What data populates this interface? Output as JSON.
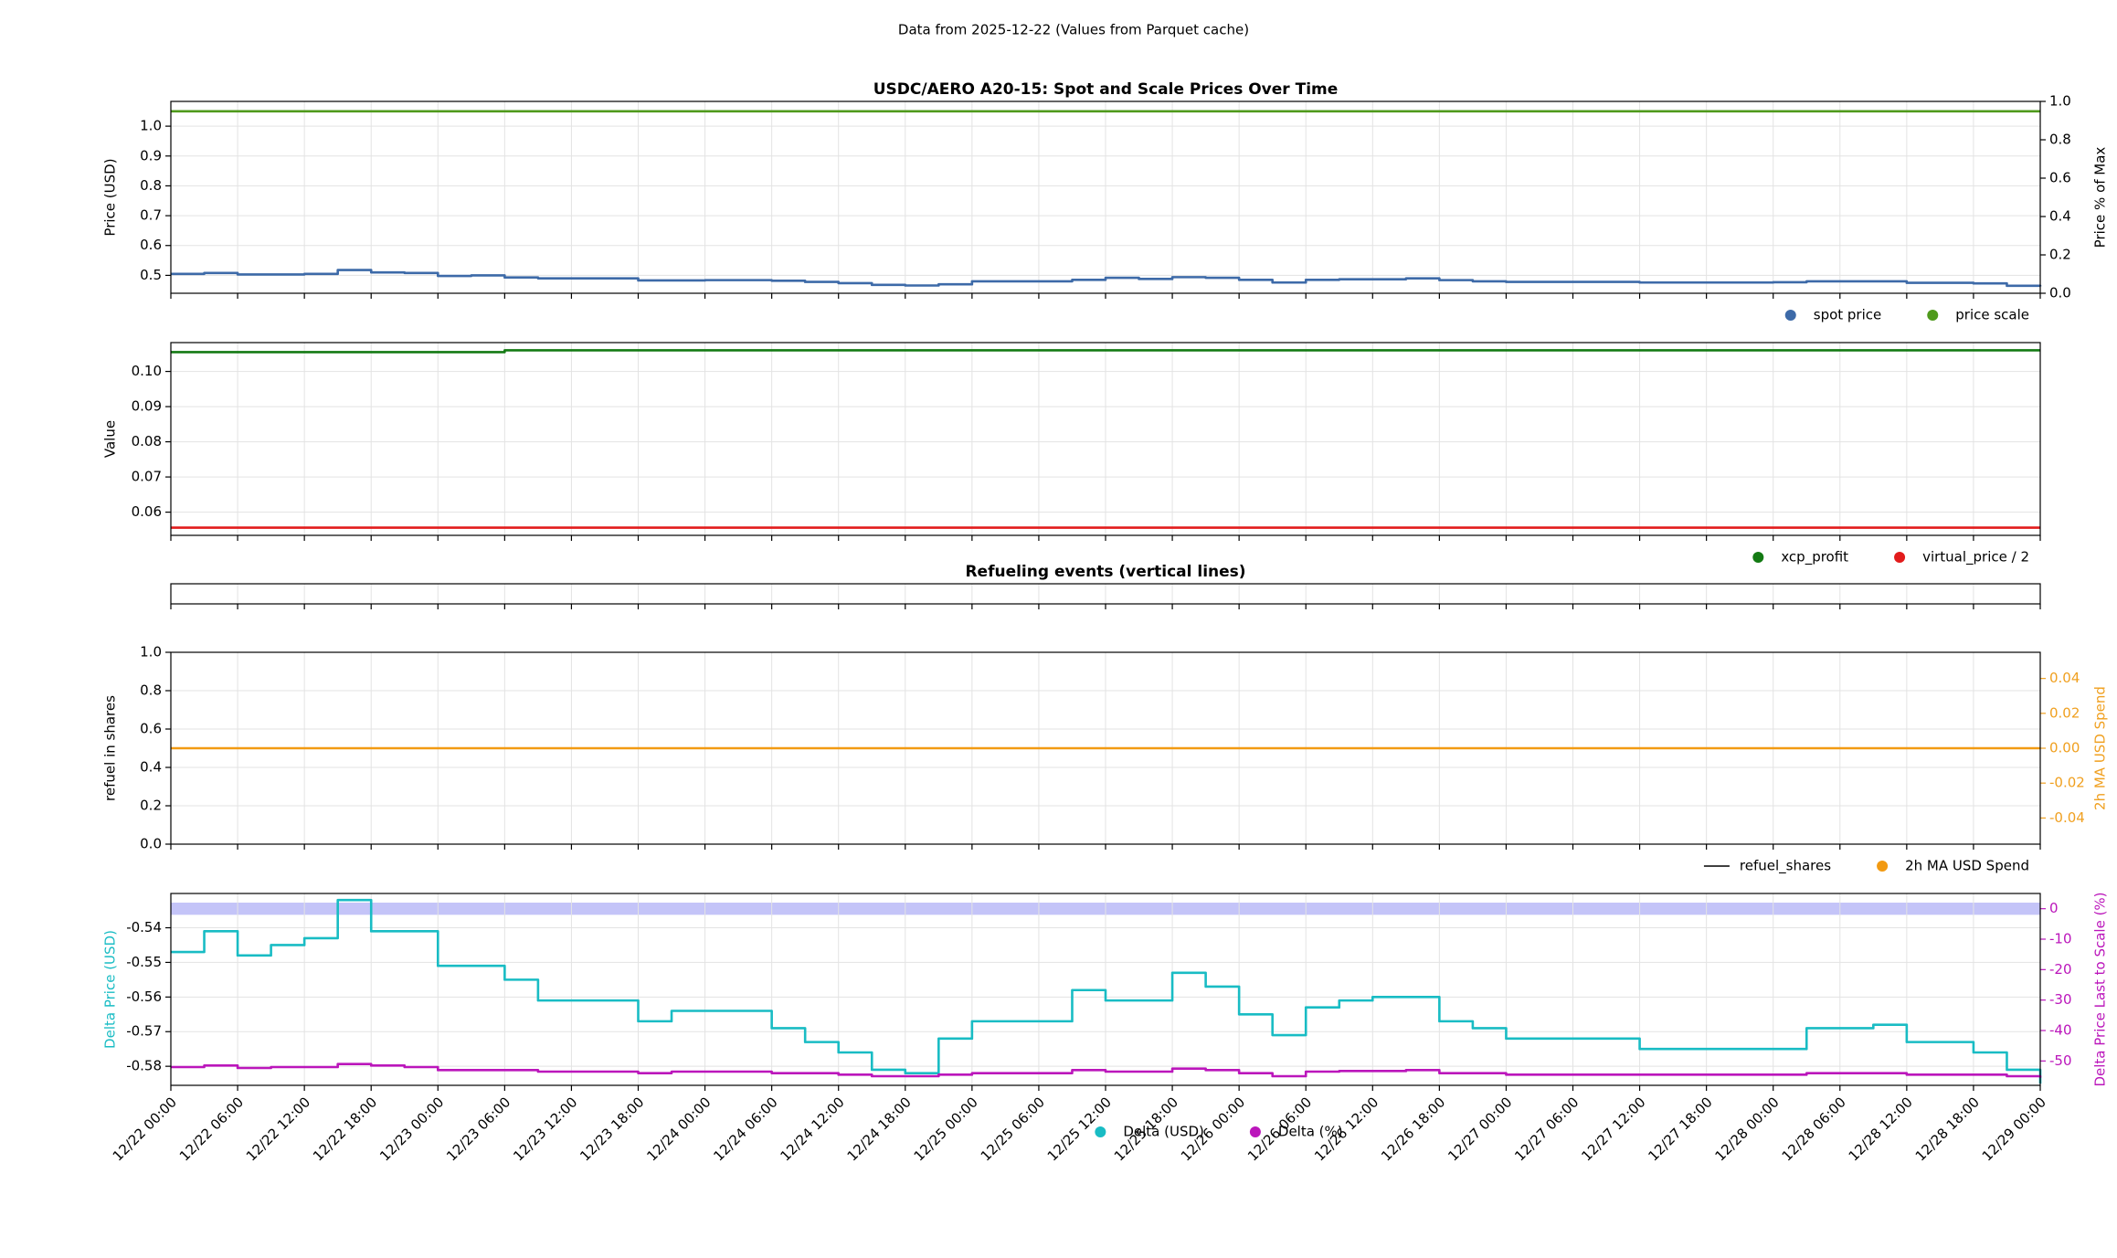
{
  "title": "Data from 2025-12-22 (Values from Parquet cache)",
  "shared_x": {
    "xlim": [
      "12/22 00:00",
      "12/29 00:00"
    ],
    "xticks": [
      "12/22 00:00",
      "12/22 06:00",
      "12/22 12:00",
      "12/22 18:00",
      "12/23 00:00",
      "12/23 06:00",
      "12/23 12:00",
      "12/23 18:00",
      "12/24 00:00",
      "12/24 06:00",
      "12/24 12:00",
      "12/24 18:00",
      "12/25 00:00",
      "12/25 06:00",
      "12/25 12:00",
      "12/25 18:00",
      "12/26 00:00",
      "12/26 06:00",
      "12/26 12:00",
      "12/26 18:00",
      "12/27 00:00",
      "12/27 06:00",
      "12/27 12:00",
      "12/27 18:00",
      "12/28 00:00",
      "12/28 06:00",
      "12/28 12:00",
      "12/28 18:00",
      "12/29 00:00"
    ]
  },
  "chart_data": [
    {
      "type": "line",
      "title": "USDC/AERO A20-15: Spot and Scale Prices Over Time",
      "ylabel": "Price (USD)",
      "y2label": "Price % of Max",
      "drawstyle": "steps-post",
      "grid": true,
      "legend": "below right",
      "ylim": [
        0.44,
        1.083
      ],
      "yticks": [
        0.5,
        0.6,
        0.7,
        0.8,
        0.9,
        {
          "value": 1,
          "label": "1.0"
        }
      ],
      "y2lim": [
        0,
        1
      ],
      "y2ticks": [
        {
          "value": 0,
          "label": "0.0"
        },
        0.2,
        0.4,
        0.6,
        0.8,
        {
          "value": 1,
          "label": "1.0"
        }
      ],
      "x": [
        "12/22 00:00",
        "12/22 03:00",
        "12/22 06:00",
        "12/22 09:00",
        "12/22 12:00",
        "12/22 15:00",
        "12/22 18:00",
        "12/22 21:00",
        "12/23 00:00",
        "12/23 03:00",
        "12/23 06:00",
        "12/23 09:00",
        "12/23 12:00",
        "12/23 15:00",
        "12/23 18:00",
        "12/23 21:00",
        "12/24 00:00",
        "12/24 03:00",
        "12/24 06:00",
        "12/24 09:00",
        "12/24 12:00",
        "12/24 15:00",
        "12/24 18:00",
        "12/24 21:00",
        "12/25 00:00",
        "12/25 03:00",
        "12/25 06:00",
        "12/25 09:00",
        "12/25 12:00",
        "12/25 15:00",
        "12/25 18:00",
        "12/25 21:00",
        "12/26 00:00",
        "12/26 03:00",
        "12/26 06:00",
        "12/26 09:00",
        "12/26 12:00",
        "12/26 15:00",
        "12/26 18:00",
        "12/26 21:00",
        "12/27 00:00",
        "12/27 03:00",
        "12/27 06:00",
        "12/27 09:00",
        "12/27 12:00",
        "12/27 15:00",
        "12/27 18:00",
        "12/27 21:00",
        "12/28 00:00",
        "12/28 03:00",
        "12/28 06:00",
        "12/28 09:00",
        "12/28 12:00",
        "12/28 15:00",
        "12/28 18:00",
        "12/28 21:00",
        "12/29 00:00"
      ],
      "series": [
        {
          "name": "spot price",
          "color": "#3d6aa8",
          "marker": "dot",
          "values": [
            0.505,
            0.508,
            0.503,
            0.503,
            0.505,
            0.518,
            0.51,
            0.508,
            0.498,
            0.5,
            0.493,
            0.49,
            0.49,
            0.49,
            0.483,
            0.483,
            0.484,
            0.484,
            0.482,
            0.478,
            0.474,
            0.468,
            0.466,
            0.47,
            0.48,
            0.48,
            0.48,
            0.485,
            0.492,
            0.488,
            0.494,
            0.492,
            0.485,
            0.476,
            0.485,
            0.487,
            0.487,
            0.49,
            0.484,
            0.48,
            0.478,
            0.478,
            0.478,
            0.478,
            0.476,
            0.476,
            0.476,
            0.476,
            0.477,
            0.48,
            0.48,
            0.48,
            0.475,
            0.475,
            0.473,
            0.465,
            0.463
          ]
        },
        {
          "name": "price scale",
          "color": "#4f9a1c",
          "marker": "dot",
          "x": [
            "12/22 00:00",
            "12/29 00:00"
          ],
          "values": [
            1.05,
            1.05
          ]
        }
      ]
    },
    {
      "type": "line",
      "ylabel": "Value",
      "drawstyle": "steps-post",
      "grid": true,
      "legend": "below right",
      "ylim": [
        0.0534,
        0.1082
      ],
      "yticks": [
        0.06,
        0.07,
        0.08,
        0.09,
        {
          "value": 0.1,
          "label": "0.10"
        }
      ],
      "series": [
        {
          "name": "xcp_profit",
          "color": "#137a13",
          "marker": "dot",
          "x": [
            "12/22 00:00",
            "12/23 06:00",
            "12/29 00:00"
          ],
          "values": [
            0.1055,
            0.106,
            0.106
          ]
        },
        {
          "name": "virtual_price / 2",
          "color": "#e21c1c",
          "marker": "dot",
          "x": [
            "12/22 00:00",
            "12/29 00:00"
          ],
          "values": [
            0.0556,
            0.0556
          ]
        }
      ]
    },
    {
      "type": "line",
      "title": "Refueling events (vertical lines)",
      "grid": true,
      "series": []
    },
    {
      "type": "line",
      "ylabel": "refuel in shares",
      "y2label": "2h MA USD Spend",
      "y2_color": "#f0a020",
      "grid": true,
      "legend": "below right",
      "ylim": [
        0,
        1
      ],
      "yticks": [
        {
          "value": 0,
          "label": "0.0"
        },
        0.2,
        0.4,
        0.6,
        0.8,
        {
          "value": 1,
          "label": "1.0"
        }
      ],
      "y2lim": [
        -0.055,
        0.055
      ],
      "y2ticks": [
        -0.04,
        -0.02,
        {
          "value": 0,
          "label": "0.00"
        },
        0.02,
        0.04
      ],
      "series": [
        {
          "name": "refuel_shares",
          "color": "#000000",
          "marker": "line",
          "x": [],
          "values": []
        },
        {
          "name": "2h MA USD Spend",
          "color": "#f29a12",
          "marker": "dot",
          "axis": "y2",
          "x": [
            "12/22 00:00",
            "12/29 00:00"
          ],
          "values": [
            0,
            0
          ]
        }
      ]
    },
    {
      "type": "line",
      "ylabel": "Delta Price (USD)",
      "ylabel_color": "#19bcc4",
      "y2label": "Delta Price Last to Scale (%)",
      "y2_color": "#bb16bb",
      "drawstyle": "steps-post",
      "grid": true,
      "legend": "below center",
      "ylim": [
        -0.5855,
        -0.5301
      ],
      "yticks": [
        -0.58,
        -0.57,
        -0.56,
        -0.55,
        -0.54
      ],
      "y2lim": [
        -58,
        5
      ],
      "y2ticks": [
        -50,
        -40,
        -30,
        -20,
        -10,
        0
      ],
      "bands": [
        {
          "from": -2,
          "to": 2,
          "axis": "y2",
          "color": "#c4c4f8"
        }
      ],
      "x": [
        "12/22 00:00",
        "12/22 03:00",
        "12/22 06:00",
        "12/22 09:00",
        "12/22 12:00",
        "12/22 15:00",
        "12/22 18:00",
        "12/22 21:00",
        "12/23 00:00",
        "12/23 03:00",
        "12/23 06:00",
        "12/23 09:00",
        "12/23 12:00",
        "12/23 15:00",
        "12/23 18:00",
        "12/23 21:00",
        "12/24 00:00",
        "12/24 03:00",
        "12/24 06:00",
        "12/24 09:00",
        "12/24 12:00",
        "12/24 15:00",
        "12/24 18:00",
        "12/24 21:00",
        "12/25 00:00",
        "12/25 03:00",
        "12/25 06:00",
        "12/25 09:00",
        "12/25 12:00",
        "12/25 15:00",
        "12/25 18:00",
        "12/25 21:00",
        "12/26 00:00",
        "12/26 03:00",
        "12/26 06:00",
        "12/26 09:00",
        "12/26 12:00",
        "12/26 15:00",
        "12/26 18:00",
        "12/26 21:00",
        "12/27 00:00",
        "12/27 03:00",
        "12/27 06:00",
        "12/27 09:00",
        "12/27 12:00",
        "12/27 15:00",
        "12/27 18:00",
        "12/27 21:00",
        "12/28 00:00",
        "12/28 03:00",
        "12/28 06:00",
        "12/28 09:00",
        "12/28 12:00",
        "12/28 15:00",
        "12/28 18:00",
        "12/28 21:00",
        "12/29 00:00"
      ],
      "series": [
        {
          "name": "Delta (USD)",
          "color": "#19bcc4",
          "marker": "dot",
          "values": [
            -0.547,
            -0.541,
            -0.548,
            -0.545,
            -0.543,
            -0.532,
            -0.541,
            -0.541,
            -0.551,
            -0.551,
            -0.555,
            -0.561,
            -0.561,
            -0.561,
            -0.567,
            -0.564,
            -0.564,
            -0.564,
            -0.569,
            -0.573,
            -0.576,
            -0.581,
            -0.582,
            -0.572,
            -0.567,
            -0.567,
            -0.567,
            -0.558,
            -0.561,
            -0.561,
            -0.553,
            -0.557,
            -0.565,
            -0.571,
            -0.563,
            -0.561,
            -0.56,
            -0.56,
            -0.567,
            -0.569,
            -0.572,
            -0.572,
            -0.572,
            -0.572,
            -0.575,
            -0.575,
            -0.575,
            -0.575,
            -0.575,
            -0.569,
            -0.569,
            -0.568,
            -0.573,
            -0.573,
            -0.576,
            -0.581,
            -0.585
          ]
        },
        {
          "name": "Delta (%)",
          "color": "#bb16bb",
          "marker": "dot",
          "axis": "y2",
          "values": [
            -52,
            -51.5,
            -52.3,
            -52,
            -52,
            -51,
            -51.5,
            -52,
            -53,
            -53,
            -53,
            -53.5,
            -53.5,
            -53.5,
            -54,
            -53.5,
            -53.5,
            -53.5,
            -54,
            -54,
            -54.5,
            -55,
            -55,
            -54.5,
            -54,
            -54,
            -54,
            -53,
            -53.5,
            -53.5,
            -52.5,
            -53,
            -54,
            -55,
            -53.5,
            -53.3,
            -53.3,
            -53,
            -54,
            -54,
            -54.5,
            -54.5,
            -54.5,
            -54.5,
            -54.5,
            -54.5,
            -54.5,
            -54.5,
            -54.5,
            -54,
            -54,
            -54,
            -54.5,
            -54.5,
            -54.5,
            -55,
            -55.5
          ]
        }
      ]
    }
  ]
}
